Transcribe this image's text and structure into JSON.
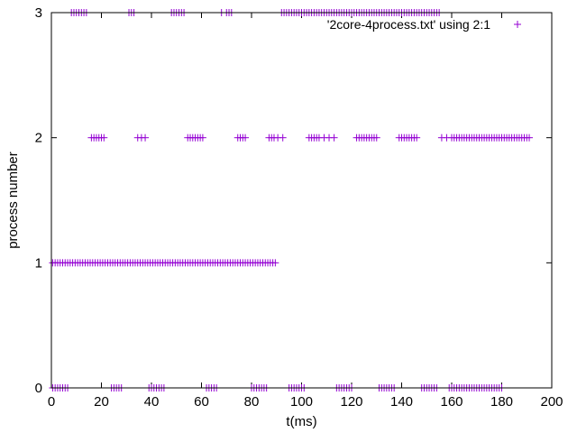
{
  "chart_data": {
    "type": "scatter",
    "title": "",
    "xlabel": "t(ms)",
    "ylabel": "process number",
    "xlim": [
      0,
      200
    ],
    "ylim": [
      0,
      3
    ],
    "x_ticks": [
      0,
      20,
      40,
      60,
      80,
      100,
      120,
      140,
      160,
      180,
      200
    ],
    "y_ticks": [
      0,
      1,
      2,
      3
    ],
    "grid": false,
    "legend": {
      "placement": "top-right",
      "entries": [
        {
          "label": "'2core-4process.txt' using 2:1",
          "marker": "plus",
          "color": "#9400d3"
        }
      ]
    },
    "series": [
      {
        "name": "'2core-4process.txt' using 2:1",
        "color": "#9400d3",
        "marker": "plus",
        "y_values": [
          0,
          1,
          2,
          3
        ],
        "points_by_y": {
          "0": [
            0.5,
            1.5,
            2.5,
            3.5,
            4.5,
            5.5,
            6.5,
            24,
            25,
            26,
            27,
            28,
            39,
            40,
            41,
            42,
            43,
            44,
            45,
            62,
            63,
            64,
            65,
            66,
            80,
            81,
            82,
            83,
            84,
            85,
            86,
            95,
            96,
            97,
            98,
            99,
            100,
            101,
            114,
            115,
            116,
            117,
            118,
            119,
            120,
            131,
            132,
            133,
            134,
            135,
            136,
            137,
            148,
            149,
            150,
            151,
            152,
            153,
            154,
            159,
            160,
            161,
            162,
            163,
            164,
            165,
            166,
            167,
            168,
            169,
            170,
            171,
            172,
            173,
            174,
            175,
            176,
            177,
            178,
            179,
            180
          ],
          "1": [
            0.5,
            1.5,
            2.5,
            3.5,
            4.5,
            5.5,
            6.5,
            7.5,
            8.5,
            9.5,
            10.5,
            11.5,
            12.5,
            13.5,
            14.5,
            15.5,
            16.5,
            17.5,
            18.5,
            19.5,
            20.5,
            21.5,
            22.5,
            23.5,
            24.5,
            25.5,
            26.5,
            27.5,
            28.5,
            29.5,
            30.5,
            31.5,
            32.5,
            33.5,
            34.5,
            35.5,
            36.5,
            37.5,
            38.5,
            39.5,
            40.5,
            41.5,
            42.5,
            43.5,
            44.5,
            45.5,
            46.5,
            47.5,
            48.5,
            49.5,
            50.5,
            51.5,
            52.5,
            53.5,
            54.5,
            55.5,
            56.5,
            57.5,
            58.5,
            59.5,
            60.5,
            61.5,
            62.5,
            63.5,
            64.5,
            65.5,
            66.5,
            67.5,
            68.5,
            69.5,
            70.5,
            71.5,
            72.5,
            73.5,
            74.5,
            75.5,
            76.5,
            77.5,
            78.5,
            79.5,
            80.5,
            81.5,
            82.5,
            83.5,
            84.5,
            85.5,
            86.5,
            87.5,
            88.5,
            89.5
          ],
          "2": [
            16,
            17,
            18,
            19,
            20,
            21,
            34.5,
            36,
            37.5,
            54.5,
            55.5,
            56.5,
            57.5,
            58.5,
            59.5,
            60.5,
            74.5,
            75.5,
            76.5,
            77.5,
            87,
            88,
            89,
            90.5,
            92.5,
            103,
            104,
            105,
            106,
            107,
            109,
            111,
            113,
            122,
            123,
            124,
            125,
            126,
            127,
            128,
            129,
            130,
            139,
            140,
            141,
            142,
            143,
            144,
            145,
            146,
            156,
            158,
            160,
            161,
            162,
            163,
            164,
            165,
            166,
            167,
            168,
            169,
            170,
            171,
            172,
            173,
            174,
            175,
            176,
            177,
            178,
            179,
            180,
            181,
            182,
            183,
            184,
            185,
            186,
            187,
            188,
            189,
            190,
            191
          ],
          "3": [
            8,
            9,
            10,
            11,
            12,
            13,
            14,
            31,
            32,
            33,
            48,
            49,
            50,
            51,
            52,
            53,
            68,
            70,
            71,
            72,
            92,
            93,
            94,
            95,
            96,
            97,
            98,
            99,
            100,
            101,
            102,
            103,
            104,
            105,
            106,
            107,
            108,
            109,
            110,
            111,
            112,
            113,
            114,
            115,
            116,
            117,
            118,
            119,
            120,
            121,
            122,
            123,
            124,
            125,
            126,
            127,
            128,
            129,
            130,
            131,
            132,
            133,
            134,
            135,
            136,
            137,
            138,
            139,
            140,
            141,
            142,
            143,
            144,
            145,
            146,
            147,
            148,
            149,
            150,
            151,
            152,
            153,
            154,
            155
          ]
        }
      }
    ]
  }
}
